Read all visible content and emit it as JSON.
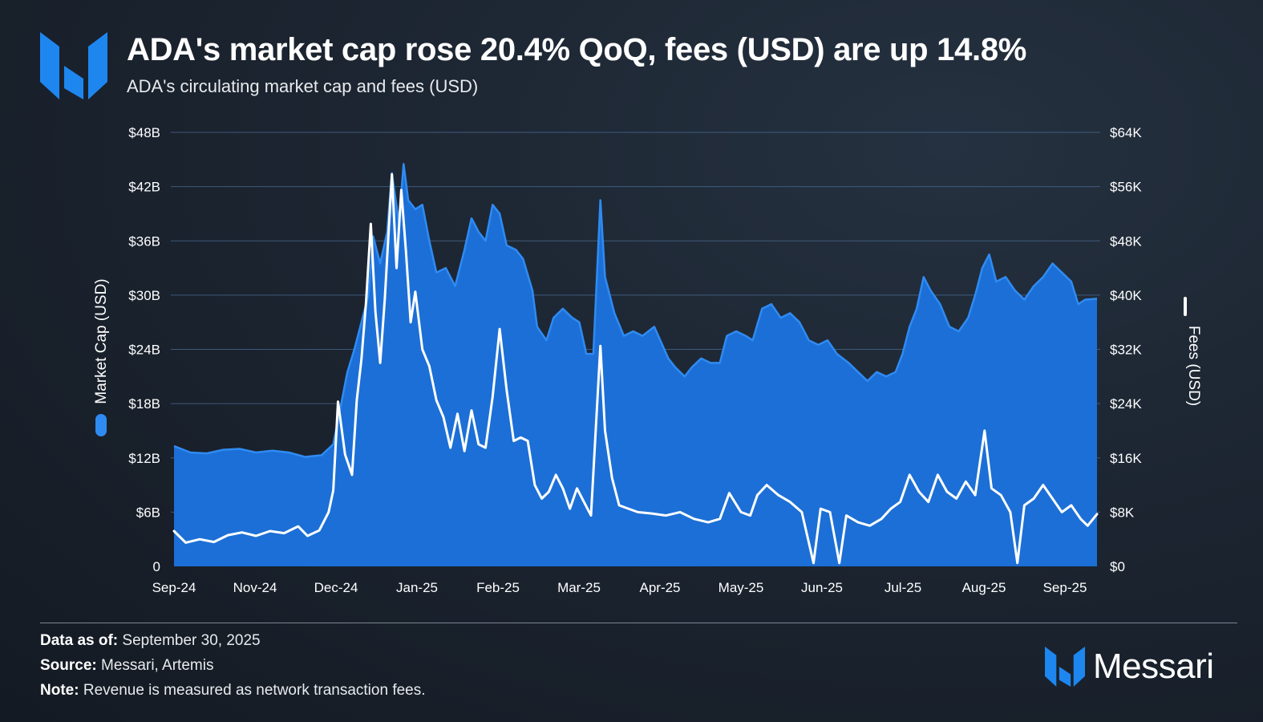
{
  "title": "ADA's market cap rose 20.4% QoQ, fees (USD) are up 14.8%",
  "subtitle": "ADA's circulating market cap and fees (USD)",
  "footer": {
    "data_as_of_label": "Data as of:",
    "data_as_of_value": "September 30, 2025",
    "source_label": "Source:",
    "source_value": "Messari, Artemis",
    "note_label": "Note:",
    "note_value": "Revenue is measured as network transaction fees."
  },
  "brand": {
    "name": "Messari",
    "logo_icon": "messari-logo-icon",
    "color": "#1e86ef"
  },
  "colors": {
    "market_cap_fill": "#1c6fd6",
    "market_cap_line": "#2f8bf2",
    "fees_line": "#ffffff",
    "gridline": "#4a6b94"
  },
  "chart_data": {
    "type": "area",
    "x_tick_labels": [
      "Sep-24",
      "Nov-24",
      "Dec-24",
      "Jan-25",
      "Feb-25",
      "Mar-25",
      "Apr-25",
      "May-25",
      "Jun-25",
      "Jul-25",
      "Aug-25",
      "Sep-25"
    ],
    "x_range": [
      "2024-09-01",
      "2025-09-30"
    ],
    "y_left": {
      "label": "Market Cap (USD)",
      "ticks": [
        "0",
        "$6B",
        "$12B",
        "$18B",
        "$24B",
        "$30B",
        "$36B",
        "$42B",
        "$48B"
      ],
      "range": [
        0,
        48
      ],
      "unit": "B"
    },
    "y_right": {
      "label": "Fees (USD)",
      "ticks": [
        "$0",
        "$8K",
        "$16K",
        "$24K",
        "$32K",
        "$40K",
        "$48K",
        "$56K",
        "$64K"
      ],
      "range": [
        0,
        64
      ],
      "unit": "K"
    },
    "grid": true,
    "legend": "axis-titles",
    "series": [
      {
        "name": "Market Cap (USD)",
        "axis": "left",
        "type": "area",
        "points": [
          [
            "2024-09-01",
            13.3
          ],
          [
            "2024-09-08",
            12.6
          ],
          [
            "2024-09-15",
            12.5
          ],
          [
            "2024-09-22",
            12.9
          ],
          [
            "2024-09-29",
            13.0
          ],
          [
            "2024-10-06",
            12.6
          ],
          [
            "2024-10-13",
            12.8
          ],
          [
            "2024-10-20",
            12.6
          ],
          [
            "2024-10-27",
            12.1
          ],
          [
            "2024-11-03",
            12.3
          ],
          [
            "2024-11-08",
            13.5
          ],
          [
            "2024-11-11",
            17.5
          ],
          [
            "2024-11-14",
            21.5
          ],
          [
            "2024-11-17",
            24.0
          ],
          [
            "2024-11-20",
            27.0
          ],
          [
            "2024-11-23",
            30.0
          ],
          [
            "2024-11-25",
            36.5
          ],
          [
            "2024-11-28",
            33.5
          ],
          [
            "2024-12-01",
            37.0
          ],
          [
            "2024-12-03",
            43.5
          ],
          [
            "2024-12-06",
            38.0
          ],
          [
            "2024-12-08",
            44.5
          ],
          [
            "2024-12-10",
            40.5
          ],
          [
            "2024-12-13",
            39.5
          ],
          [
            "2024-12-16",
            40.0
          ],
          [
            "2024-12-19",
            36.0
          ],
          [
            "2024-12-22",
            32.5
          ],
          [
            "2024-12-26",
            33.0
          ],
          [
            "2024-12-30",
            31.0
          ],
          [
            "2025-01-03",
            35.0
          ],
          [
            "2025-01-06",
            38.5
          ],
          [
            "2025-01-09",
            37.0
          ],
          [
            "2025-01-12",
            36.0
          ],
          [
            "2025-01-15",
            40.0
          ],
          [
            "2025-01-18",
            39.0
          ],
          [
            "2025-01-21",
            35.5
          ],
          [
            "2025-01-25",
            35.0
          ],
          [
            "2025-01-28",
            34.0
          ],
          [
            "2025-02-01",
            30.5
          ],
          [
            "2025-02-03",
            26.5
          ],
          [
            "2025-02-07",
            25.0
          ],
          [
            "2025-02-10",
            27.5
          ],
          [
            "2025-02-14",
            28.5
          ],
          [
            "2025-02-18",
            27.5
          ],
          [
            "2025-02-21",
            27.0
          ],
          [
            "2025-02-24",
            23.5
          ],
          [
            "2025-02-27",
            23.5
          ],
          [
            "2025-03-02",
            40.5
          ],
          [
            "2025-03-04",
            32.0
          ],
          [
            "2025-03-08",
            28.0
          ],
          [
            "2025-03-12",
            25.5
          ],
          [
            "2025-03-16",
            26.0
          ],
          [
            "2025-03-20",
            25.5
          ],
          [
            "2025-03-25",
            26.5
          ],
          [
            "2025-03-31",
            23.0
          ],
          [
            "2025-04-03",
            22.0
          ],
          [
            "2025-04-07",
            21.0
          ],
          [
            "2025-04-10",
            22.0
          ],
          [
            "2025-04-14",
            23.0
          ],
          [
            "2025-04-18",
            22.5
          ],
          [
            "2025-04-22",
            22.5
          ],
          [
            "2025-04-25",
            25.5
          ],
          [
            "2025-04-29",
            26.0
          ],
          [
            "2025-05-03",
            25.5
          ],
          [
            "2025-05-06",
            25.0
          ],
          [
            "2025-05-10",
            28.5
          ],
          [
            "2025-05-14",
            29.0
          ],
          [
            "2025-05-18",
            27.5
          ],
          [
            "2025-05-22",
            28.0
          ],
          [
            "2025-05-26",
            27.0
          ],
          [
            "2025-05-30",
            25.0
          ],
          [
            "2025-06-03",
            24.5
          ],
          [
            "2025-06-07",
            25.0
          ],
          [
            "2025-06-11",
            23.5
          ],
          [
            "2025-06-16",
            22.5
          ],
          [
            "2025-06-20",
            21.5
          ],
          [
            "2025-06-24",
            20.5
          ],
          [
            "2025-06-28",
            21.5
          ],
          [
            "2025-07-02",
            21.0
          ],
          [
            "2025-07-06",
            21.5
          ],
          [
            "2025-07-09",
            23.5
          ],
          [
            "2025-07-12",
            26.5
          ],
          [
            "2025-07-15",
            28.5
          ],
          [
            "2025-07-18",
            32.0
          ],
          [
            "2025-07-21",
            30.5
          ],
          [
            "2025-07-25",
            29.0
          ],
          [
            "2025-07-29",
            26.5
          ],
          [
            "2025-08-02",
            26.0
          ],
          [
            "2025-08-06",
            27.5
          ],
          [
            "2025-08-09",
            30.0
          ],
          [
            "2025-08-12",
            33.0
          ],
          [
            "2025-08-15",
            34.5
          ],
          [
            "2025-08-18",
            31.5
          ],
          [
            "2025-08-22",
            32.0
          ],
          [
            "2025-08-26",
            30.5
          ],
          [
            "2025-08-30",
            29.5
          ],
          [
            "2025-09-03",
            31.0
          ],
          [
            "2025-09-07",
            32.0
          ],
          [
            "2025-09-11",
            33.5
          ],
          [
            "2025-09-15",
            32.5
          ],
          [
            "2025-09-19",
            31.5
          ],
          [
            "2025-09-22",
            29.0
          ],
          [
            "2025-09-25",
            29.5
          ],
          [
            "2025-09-30",
            29.6
          ]
        ]
      },
      {
        "name": "Fees (USD)",
        "axis": "right",
        "type": "line",
        "points": [
          [
            "2024-09-01",
            5.2
          ],
          [
            "2024-09-06",
            3.5
          ],
          [
            "2024-09-12",
            4.0
          ],
          [
            "2024-09-18",
            3.6
          ],
          [
            "2024-09-24",
            4.6
          ],
          [
            "2024-09-30",
            5.0
          ],
          [
            "2024-10-06",
            4.5
          ],
          [
            "2024-10-12",
            5.2
          ],
          [
            "2024-10-18",
            4.9
          ],
          [
            "2024-10-24",
            5.9
          ],
          [
            "2024-10-28",
            4.5
          ],
          [
            "2024-11-02",
            5.3
          ],
          [
            "2024-11-06",
            8.0
          ],
          [
            "2024-11-08",
            11.2
          ],
          [
            "2024-11-10",
            24.3
          ],
          [
            "2024-11-13",
            16.5
          ],
          [
            "2024-11-16",
            13.5
          ],
          [
            "2024-11-18",
            24.5
          ],
          [
            "2024-11-20",
            30.5
          ],
          [
            "2024-11-22",
            39.0
          ],
          [
            "2024-11-24",
            50.5
          ],
          [
            "2024-11-26",
            37.5
          ],
          [
            "2024-11-28",
            30.0
          ],
          [
            "2024-11-30",
            39.5
          ],
          [
            "2024-12-03",
            57.8
          ],
          [
            "2024-12-05",
            44.0
          ],
          [
            "2024-12-07",
            55.5
          ],
          [
            "2024-12-09",
            46.5
          ],
          [
            "2024-12-11",
            36.0
          ],
          [
            "2024-12-13",
            40.5
          ],
          [
            "2024-12-16",
            32.0
          ],
          [
            "2024-12-19",
            29.5
          ],
          [
            "2024-12-22",
            24.5
          ],
          [
            "2024-12-25",
            22.0
          ],
          [
            "2024-12-28",
            17.5
          ],
          [
            "2024-12-31",
            22.5
          ],
          [
            "2025-01-03",
            17.0
          ],
          [
            "2025-01-06",
            23.0
          ],
          [
            "2025-01-09",
            18.0
          ],
          [
            "2025-01-12",
            17.5
          ],
          [
            "2025-01-15",
            25.0
          ],
          [
            "2025-01-18",
            35.0
          ],
          [
            "2025-01-21",
            26.0
          ],
          [
            "2025-01-24",
            18.5
          ],
          [
            "2025-01-27",
            19.0
          ],
          [
            "2025-01-30",
            18.5
          ],
          [
            "2025-02-02",
            12.0
          ],
          [
            "2025-02-05",
            10.0
          ],
          [
            "2025-02-08",
            11.0
          ],
          [
            "2025-02-11",
            13.5
          ],
          [
            "2025-02-14",
            11.5
          ],
          [
            "2025-02-17",
            8.5
          ],
          [
            "2025-02-20",
            11.5
          ],
          [
            "2025-02-23",
            9.5
          ],
          [
            "2025-02-26",
            7.5
          ],
          [
            "2025-03-02",
            32.5
          ],
          [
            "2025-03-04",
            20.0
          ],
          [
            "2025-03-07",
            13.0
          ],
          [
            "2025-03-10",
            9.0
          ],
          [
            "2025-03-14",
            8.5
          ],
          [
            "2025-03-18",
            8.0
          ],
          [
            "2025-03-24",
            7.8
          ],
          [
            "2025-03-30",
            7.5
          ],
          [
            "2025-04-05",
            8.0
          ],
          [
            "2025-04-11",
            7.0
          ],
          [
            "2025-04-17",
            6.5
          ],
          [
            "2025-04-22",
            7.0
          ],
          [
            "2025-04-26",
            10.8
          ],
          [
            "2025-05-01",
            8.0
          ],
          [
            "2025-05-05",
            7.5
          ],
          [
            "2025-05-08",
            10.5
          ],
          [
            "2025-05-12",
            12.0
          ],
          [
            "2025-05-17",
            10.5
          ],
          [
            "2025-05-22",
            9.5
          ],
          [
            "2025-05-27",
            8.0
          ],
          [
            "2025-06-01",
            0.5
          ],
          [
            "2025-06-04",
            8.5
          ],
          [
            "2025-06-08",
            8.0
          ],
          [
            "2025-06-12",
            0.5
          ],
          [
            "2025-06-15",
            7.5
          ],
          [
            "2025-06-20",
            6.5
          ],
          [
            "2025-06-25",
            6.0
          ],
          [
            "2025-06-30",
            7.0
          ],
          [
            "2025-07-04",
            8.5
          ],
          [
            "2025-07-08",
            9.5
          ],
          [
            "2025-07-12",
            13.5
          ],
          [
            "2025-07-16",
            11.0
          ],
          [
            "2025-07-20",
            9.5
          ],
          [
            "2025-07-24",
            13.5
          ],
          [
            "2025-07-28",
            11.0
          ],
          [
            "2025-08-01",
            10.0
          ],
          [
            "2025-08-05",
            12.5
          ],
          [
            "2025-08-09",
            10.5
          ],
          [
            "2025-08-13",
            20.0
          ],
          [
            "2025-08-16",
            11.5
          ],
          [
            "2025-08-20",
            10.5
          ],
          [
            "2025-08-24",
            8.0
          ],
          [
            "2025-08-27",
            0.5
          ],
          [
            "2025-08-30",
            9.0
          ],
          [
            "2025-09-03",
            10.0
          ],
          [
            "2025-09-07",
            12.0
          ],
          [
            "2025-09-11",
            10.0
          ],
          [
            "2025-09-15",
            8.0
          ],
          [
            "2025-09-19",
            9.0
          ],
          [
            "2025-09-23",
            7.0
          ],
          [
            "2025-09-26",
            6.0
          ],
          [
            "2025-09-30",
            7.7
          ]
        ]
      }
    ]
  }
}
